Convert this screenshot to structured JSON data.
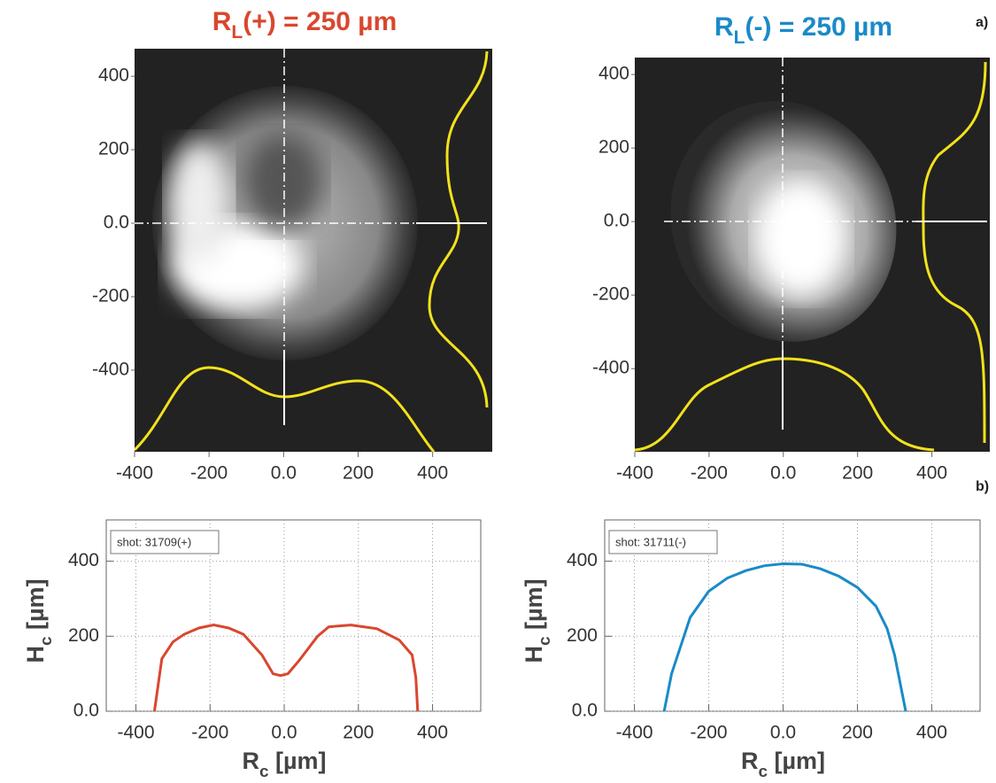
{
  "panel_labels": [
    "a)",
    "b)"
  ],
  "chart_data": [
    {
      "type": "image",
      "title": {
        "main": "R",
        "sub": "L",
        "rest": "(+) = 250 µm"
      },
      "color": "#d9472e",
      "xlim": [
        -400,
        560
      ],
      "ylim": [
        -622,
        475
      ],
      "xticks": [
        -400,
        -200,
        {
          "value": 0,
          "label": "0.0"
        },
        200,
        400
      ],
      "yticks": [
        -400,
        -200,
        {
          "value": 0,
          "label": "0.0"
        },
        200,
        400
      ]
    },
    {
      "type": "image",
      "title": {
        "main": "R",
        "sub": "L",
        "rest": "(-) = 250 µm"
      },
      "color": "#1a8ac8",
      "xlim": [
        -400,
        556
      ],
      "ylim": [
        -626,
        446
      ],
      "xticks": [
        -400,
        -200,
        {
          "value": 0,
          "label": "0.0"
        },
        200,
        400
      ],
      "yticks": [
        -400,
        -200,
        {
          "value": 0,
          "label": "0.0"
        },
        200,
        400
      ]
    },
    {
      "type": "line",
      "annotation": "shot: 31709(+)",
      "x_label": {
        "main": "R",
        "sub": "c",
        "rest": " [µm]"
      },
      "y_label": {
        "main": "H",
        "sub": "c",
        "rest": " [µm]"
      },
      "xlim": [
        -480,
        530
      ],
      "ylim": [
        0,
        510
      ],
      "grid": true,
      "xticks": [
        -400,
        -200,
        {
          "value": 0,
          "label": "0.0"
        },
        200,
        400
      ],
      "yticks": [
        {
          "value": 0,
          "label": "0.0"
        },
        200,
        400
      ],
      "x": [
        -350,
        -340,
        -330,
        -300,
        -270,
        -230,
        -190,
        -150,
        -110,
        -60,
        -30,
        -10,
        10,
        40,
        90,
        120,
        180,
        250,
        310,
        345,
        355,
        360
      ],
      "series": [
        {
          "color": "#d9472e",
          "values": [
            0,
            70,
            140,
            185,
            205,
            222,
            230,
            222,
            205,
            150,
            100,
            95,
            100,
            135,
            200,
            225,
            230,
            220,
            190,
            150,
            90,
            0
          ]
        }
      ]
    },
    {
      "type": "line",
      "annotation": "shot: 31711(-)",
      "x_label": {
        "main": "R",
        "sub": "c",
        "rest": " [µm]"
      },
      "y_label": {
        "main": "H",
        "sub": "c",
        "rest": " [µm]"
      },
      "xlim": [
        -480,
        530
      ],
      "ylim": [
        0,
        510
      ],
      "grid": true,
      "xticks": [
        -400,
        -200,
        {
          "value": 0,
          "label": "0.0"
        },
        200,
        400
      ],
      "yticks": [
        {
          "value": 0,
          "label": "0.0"
        },
        200,
        400
      ],
      "x": [
        -320,
        -300,
        -250,
        -200,
        -150,
        -100,
        -50,
        0,
        50,
        100,
        150,
        200,
        250,
        280,
        300,
        330
      ],
      "series": [
        {
          "color": "#1a8ac8",
          "values": [
            0,
            100,
            250,
            320,
            355,
            375,
            388,
            393,
            392,
            380,
            360,
            330,
            280,
            220,
            150,
            0
          ]
        }
      ]
    }
  ]
}
